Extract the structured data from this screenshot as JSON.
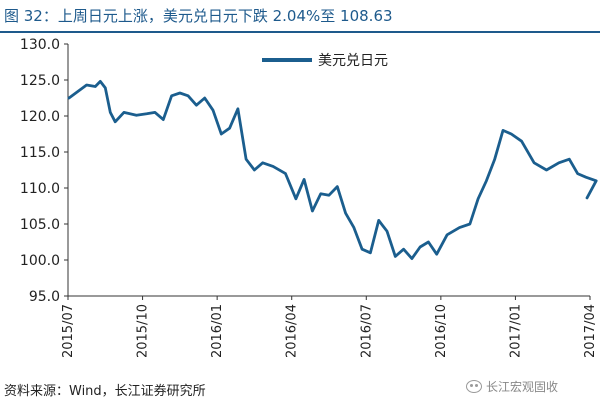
{
  "title": "图 32：上周日元上涨，美元兑日元下跌 2.04%至 108.63",
  "source": "资料来源：Wind，长江证券研究所",
  "watermark": "长江宏观固收",
  "colors": {
    "series": "#1b5e8e",
    "title": "#1e5a8c"
  },
  "chart_data": {
    "type": "line",
    "title": "",
    "xlabel": "",
    "ylabel": "",
    "ylim": [
      95,
      130
    ],
    "yticks": [
      95,
      100,
      105,
      110,
      115,
      120,
      125,
      130
    ],
    "ytick_labels": [
      "95.0",
      "100.0",
      "105.0",
      "110.0",
      "115.0",
      "120.0",
      "125.0",
      "130.0"
    ],
    "xticks": [
      "2015/07",
      "2015/10",
      "2016/01",
      "2016/04",
      "2016/07",
      "2016/10",
      "2017/01",
      "2017/04"
    ],
    "grid": false,
    "legend_position": "top-center",
    "series": [
      {
        "name": "美元兑日元",
        "x": [
          "2015/07",
          "2015/07",
          "2015/08",
          "2015/08",
          "2015/08",
          "2015/08",
          "2015/08",
          "2015/09",
          "2015/09",
          "2015/10",
          "2015/10",
          "2015/10",
          "2015/11",
          "2015/11",
          "2015/11",
          "2015/12",
          "2015/12",
          "2015/12",
          "2016/01",
          "2016/01",
          "2016/01",
          "2016/02",
          "2016/02",
          "2016/02",
          "2016/03",
          "2016/03",
          "2016/04",
          "2016/04",
          "2016/04",
          "2016/05",
          "2016/05",
          "2016/05",
          "2016/06",
          "2016/06",
          "2016/06",
          "2016/07",
          "2016/07",
          "2016/07",
          "2016/08",
          "2016/08",
          "2016/08",
          "2016/09",
          "2016/09",
          "2016/09",
          "2016/10",
          "2016/10",
          "2016/11",
          "2016/11",
          "2016/11",
          "2016/12",
          "2016/12",
          "2016/12",
          "2017/01",
          "2017/01",
          "2017/02",
          "2017/02",
          "2017/03",
          "2017/03",
          "2017/03",
          "2017/04",
          "2017/04"
        ],
        "values": [
          122.5,
          124.3,
          124.1,
          124.8,
          123.9,
          120.5,
          119.2,
          120.5,
          120.1,
          120.3,
          120.5,
          119.5,
          122.8,
          123.2,
          122.8,
          121.5,
          122.5,
          120.8,
          117.5,
          118.3,
          121.0,
          114.0,
          112.5,
          113.5,
          113.0,
          112.0,
          108.5,
          111.2,
          106.8,
          109.2,
          109.0,
          110.2,
          106.5,
          104.5,
          101.5,
          101.0,
          105.5,
          104.0,
          100.5,
          101.5,
          100.2,
          101.8,
          102.5,
          100.8,
          103.5,
          104.5,
          105.0,
          108.5,
          111.0,
          114.0,
          118.0,
          117.5,
          116.5,
          113.5,
          112.5,
          113.5,
          114.0,
          112.0,
          111.5,
          111.0,
          108.63
        ]
      }
    ]
  }
}
